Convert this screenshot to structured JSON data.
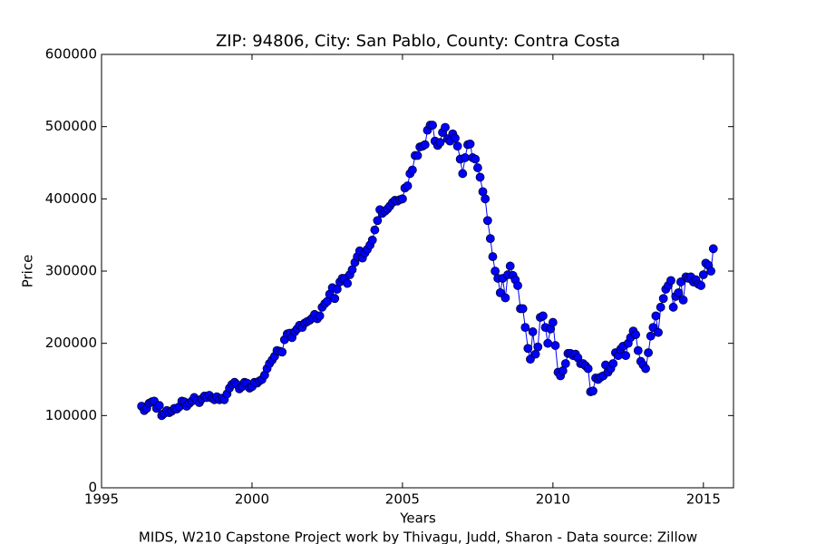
{
  "chart_data": {
    "type": "line",
    "title": "ZIP: 94806, City: San Pablo, County: Contra Costa",
    "xlabel": "Years",
    "ylabel": "Price",
    "caption": "MIDS, W210 Capstone Project work by Thivagu, Judd, Sharon  -  Data source: Zillow",
    "xlim": [
      1995,
      2016
    ],
    "xticks": [
      1995,
      2000,
      2005,
      2010,
      2015
    ],
    "ylim": [
      0,
      600000
    ],
    "yticks": [
      0,
      100000,
      200000,
      300000,
      400000,
      500000,
      600000
    ],
    "x": [
      1996.33,
      1996.42,
      1996.5,
      1996.58,
      1996.67,
      1996.75,
      1996.83,
      1996.92,
      1997.0,
      1997.08,
      1997.17,
      1997.25,
      1997.33,
      1997.42,
      1997.5,
      1997.58,
      1997.67,
      1997.75,
      1997.83,
      1997.92,
      1998.0,
      1998.08,
      1998.17,
      1998.25,
      1998.33,
      1998.42,
      1998.5,
      1998.58,
      1998.67,
      1998.75,
      1998.83,
      1998.92,
      1999.0,
      1999.08,
      1999.17,
      1999.25,
      1999.33,
      1999.42,
      1999.5,
      1999.58,
      1999.67,
      1999.75,
      1999.83,
      1999.92,
      2000.0,
      2000.08,
      2000.17,
      2000.25,
      2000.33,
      2000.42,
      2000.5,
      2000.58,
      2000.67,
      2000.75,
      2000.83,
      2000.92,
      2001.0,
      2001.08,
      2001.17,
      2001.25,
      2001.33,
      2001.42,
      2001.5,
      2001.58,
      2001.67,
      2001.75,
      2001.83,
      2001.92,
      2002.0,
      2002.08,
      2002.17,
      2002.25,
      2002.33,
      2002.42,
      2002.5,
      2002.58,
      2002.67,
      2002.75,
      2002.83,
      2002.92,
      2003.0,
      2003.08,
      2003.17,
      2003.25,
      2003.33,
      2003.42,
      2003.5,
      2003.58,
      2003.67,
      2003.75,
      2003.83,
      2003.92,
      2004.0,
      2004.08,
      2004.17,
      2004.25,
      2004.33,
      2004.42,
      2004.5,
      2004.58,
      2004.67,
      2004.75,
      2004.83,
      2004.92,
      2005.0,
      2005.08,
      2005.17,
      2005.25,
      2005.33,
      2005.42,
      2005.5,
      2005.58,
      2005.67,
      2005.75,
      2005.83,
      2005.92,
      2006.0,
      2006.08,
      2006.17,
      2006.25,
      2006.33,
      2006.42,
      2006.5,
      2006.58,
      2006.67,
      2006.75,
      2006.83,
      2006.92,
      2007.0,
      2007.08,
      2007.17,
      2007.25,
      2007.33,
      2007.42,
      2007.5,
      2007.58,
      2007.67,
      2007.75,
      2007.83,
      2007.92,
      2008.0,
      2008.08,
      2008.17,
      2008.25,
      2008.33,
      2008.42,
      2008.5,
      2008.58,
      2008.67,
      2008.75,
      2008.83,
      2008.92,
      2009.0,
      2009.08,
      2009.17,
      2009.25,
      2009.33,
      2009.42,
      2009.5,
      2009.58,
      2009.67,
      2009.75,
      2009.83,
      2009.92,
      2010.0,
      2010.08,
      2010.17,
      2010.25,
      2010.33,
      2010.42,
      2010.5,
      2010.58,
      2010.67,
      2010.75,
      2010.83,
      2010.92,
      2011.0,
      2011.08,
      2011.17,
      2011.25,
      2011.33,
      2011.42,
      2011.5,
      2011.58,
      2011.67,
      2011.75,
      2011.83,
      2011.92,
      2012.0,
      2012.08,
      2012.17,
      2012.25,
      2012.33,
      2012.42,
      2012.5,
      2012.58,
      2012.67,
      2012.75,
      2012.83,
      2012.92,
      2013.0,
      2013.08,
      2013.17,
      2013.25,
      2013.33,
      2013.42,
      2013.5,
      2013.58,
      2013.67,
      2013.75,
      2013.83,
      2013.92,
      2014.0,
      2014.08,
      2014.17,
      2014.25,
      2014.33,
      2014.42,
      2014.5,
      2014.58,
      2014.67,
      2014.75,
      2014.83,
      2014.92,
      2015.0,
      2015.08,
      2015.17,
      2015.25,
      2015.33
    ],
    "series": [
      {
        "color": "#0000ff",
        "values": [
          113000,
          107000,
          110000,
          117000,
          119000,
          120000,
          110000,
          114000,
          100000,
          103000,
          107000,
          104000,
          106000,
          110000,
          109000,
          112000,
          120000,
          119000,
          113000,
          117000,
          120000,
          125000,
          121000,
          118000,
          123000,
          127000,
          125000,
          128000,
          124000,
          122000,
          126000,
          122000,
          124000,
          122000,
          130000,
          138000,
          143000,
          146000,
          143000,
          137000,
          140000,
          146000,
          145000,
          138000,
          140000,
          146000,
          145000,
          148000,
          150000,
          156000,
          165000,
          172000,
          177000,
          182000,
          190000,
          189000,
          188000,
          205000,
          213000,
          214000,
          208000,
          216000,
          220000,
          225000,
          222000,
          228000,
          230000,
          232000,
          235000,
          240000,
          234000,
          238000,
          250000,
          255000,
          258000,
          268000,
          277000,
          262000,
          275000,
          285000,
          290000,
          290000,
          283000,
          295000,
          302000,
          312000,
          320000,
          328000,
          318000,
          325000,
          330000,
          336000,
          343000,
          357000,
          370000,
          385000,
          380000,
          383000,
          386000,
          390000,
          395000,
          398000,
          397000,
          399000,
          400000,
          415000,
          418000,
          435000,
          440000,
          460000,
          460000,
          472000,
          473000,
          475000,
          495000,
          502000,
          502000,
          480000,
          474000,
          478000,
          492000,
          499000,
          483000,
          480000,
          490000,
          484000,
          473000,
          455000,
          435000,
          457000,
          475000,
          476000,
          457000,
          455000,
          443000,
          430000,
          410000,
          400000,
          370000,
          345000,
          320000,
          300000,
          290000,
          270000,
          290000,
          263000,
          295000,
          307000,
          294000,
          288000,
          280000,
          248000,
          248000,
          222000,
          193000,
          178000,
          216000,
          185000,
          195000,
          236000,
          238000,
          222000,
          200000,
          220000,
          229000,
          197000,
          160000,
          155000,
          162000,
          172000,
          186000,
          186000,
          183000,
          185000,
          180000,
          172000,
          172000,
          169000,
          165000,
          133000,
          134000,
          152000,
          150000,
          153000,
          155000,
          170000,
          160000,
          165000,
          172000,
          187000,
          183000,
          192000,
          196000,
          183000,
          200000,
          208000,
          217000,
          212000,
          190000,
          175000,
          170000,
          165000,
          187000,
          210000,
          222000,
          238000,
          215000,
          250000,
          262000,
          275000,
          280000,
          287000,
          250000,
          265000,
          270000,
          285000,
          260000,
          292000,
          290000,
          292000,
          285000,
          288000,
          282000,
          280000,
          295000,
          311000,
          308000,
          300000,
          331000
        ]
      }
    ]
  }
}
